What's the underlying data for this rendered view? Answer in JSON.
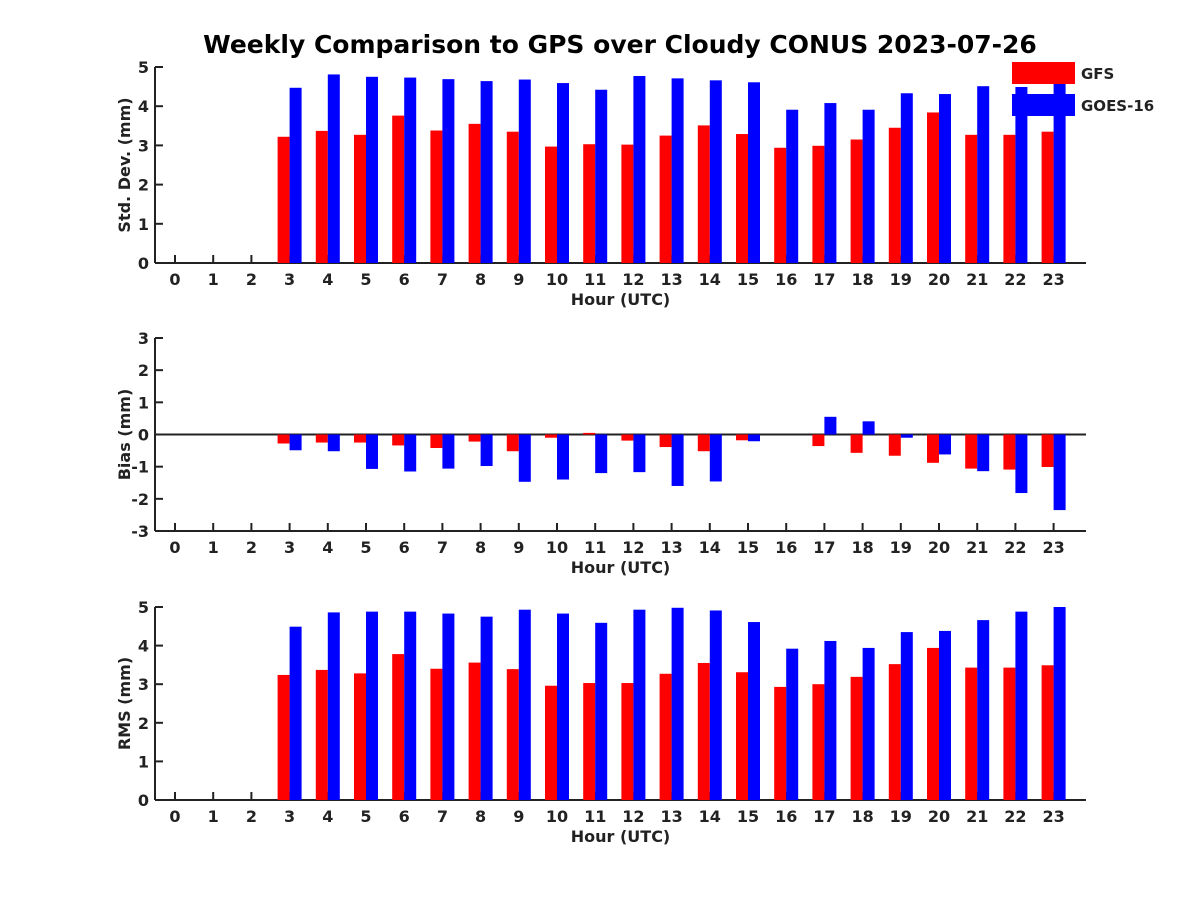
{
  "figure": {
    "title": "Weekly Comparison to GPS over Cloudy CONUS 2023-07-26"
  },
  "colors": {
    "GFS": "#ff0000",
    "GOES-16": "#0000ff"
  },
  "chart_data": [
    {
      "type": "bar",
      "title": "Weekly Comparison to GPS over Cloudy CONUS 2023-07-26",
      "xlabel": "Hour (UTC)",
      "ylabel": "Std. Dev. (mm)",
      "ylim": [
        0,
        5
      ],
      "yticks": [
        0,
        1,
        2,
        3,
        4,
        5
      ],
      "categories": [
        "0",
        "1",
        "2",
        "3",
        "4",
        "5",
        "6",
        "7",
        "8",
        "9",
        "10",
        "11",
        "12",
        "13",
        "14",
        "15",
        "16",
        "17",
        "18",
        "19",
        "20",
        "21",
        "22",
        "23"
      ],
      "legend": {
        "placement": "top-right",
        "entries": [
          "GFS",
          "GOES-16"
        ]
      },
      "series": [
        {
          "name": "GFS",
          "color": "#ff0000",
          "values": [
            null,
            null,
            null,
            3.22,
            3.37,
            3.27,
            3.76,
            3.38,
            3.55,
            3.35,
            2.97,
            3.03,
            3.02,
            3.25,
            3.51,
            3.29,
            2.94,
            2.99,
            3.15,
            3.45,
            3.84,
            3.27,
            3.27,
            3.35
          ]
        },
        {
          "name": "GOES-16",
          "color": "#0000ff",
          "values": [
            null,
            null,
            null,
            4.47,
            4.81,
            4.75,
            4.73,
            4.69,
            4.64,
            4.68,
            4.59,
            4.42,
            4.77,
            4.71,
            4.66,
            4.61,
            3.91,
            4.08,
            3.91,
            4.33,
            4.31,
            4.51,
            4.49,
            4.71
          ]
        }
      ]
    },
    {
      "type": "bar",
      "xlabel": "Hour (UTC)",
      "ylabel": "Bias (mm)",
      "ylim": [
        -3,
        3
      ],
      "yticks": [
        -3,
        -2,
        -1,
        0,
        1,
        2,
        3
      ],
      "categories": [
        "0",
        "1",
        "2",
        "3",
        "4",
        "5",
        "6",
        "7",
        "8",
        "9",
        "10",
        "11",
        "12",
        "13",
        "14",
        "15",
        "16",
        "17",
        "18",
        "19",
        "20",
        "21",
        "22",
        "23"
      ],
      "series": [
        {
          "name": "GFS",
          "color": "#ff0000",
          "values": [
            null,
            null,
            null,
            -0.28,
            -0.25,
            -0.25,
            -0.34,
            -0.42,
            -0.22,
            -0.52,
            -0.1,
            0.05,
            -0.19,
            -0.39,
            -0.52,
            -0.18,
            0.0,
            -0.36,
            -0.57,
            -0.66,
            -0.88,
            -1.06,
            -1.09,
            -1.01
          ]
        },
        {
          "name": "GOES-16",
          "color": "#0000ff",
          "values": [
            null,
            null,
            null,
            -0.49,
            -0.52,
            -1.07,
            -1.15,
            -1.06,
            -0.98,
            -1.47,
            -1.4,
            -1.2,
            -1.17,
            -1.6,
            -1.46,
            -0.21,
            0.0,
            0.55,
            0.41,
            -0.1,
            -0.62,
            -1.14,
            -1.82,
            -2.35
          ]
        }
      ]
    },
    {
      "type": "bar",
      "xlabel": "Hour (UTC)",
      "ylabel": "RMS (mm)",
      "ylim": [
        0,
        5
      ],
      "yticks": [
        0,
        1,
        2,
        3,
        4,
        5
      ],
      "categories": [
        "0",
        "1",
        "2",
        "3",
        "4",
        "5",
        "6",
        "7",
        "8",
        "9",
        "10",
        "11",
        "12",
        "13",
        "14",
        "15",
        "16",
        "17",
        "18",
        "19",
        "20",
        "21",
        "22",
        "23"
      ],
      "series": [
        {
          "name": "GFS",
          "color": "#ff0000",
          "values": [
            null,
            null,
            null,
            3.24,
            3.37,
            3.28,
            3.78,
            3.4,
            3.56,
            3.39,
            2.96,
            3.03,
            3.03,
            3.27,
            3.55,
            3.31,
            2.93,
            3.0,
            3.19,
            3.52,
            3.94,
            3.43,
            3.43,
            3.49
          ]
        },
        {
          "name": "GOES-16",
          "color": "#0000ff",
          "values": [
            null,
            null,
            null,
            4.49,
            4.86,
            4.88,
            4.88,
            4.83,
            4.75,
            4.93,
            4.83,
            4.59,
            4.93,
            4.98,
            4.91,
            4.61,
            3.92,
            4.12,
            3.94,
            4.35,
            4.38,
            4.66,
            4.88,
            5.0
          ]
        }
      ]
    }
  ]
}
